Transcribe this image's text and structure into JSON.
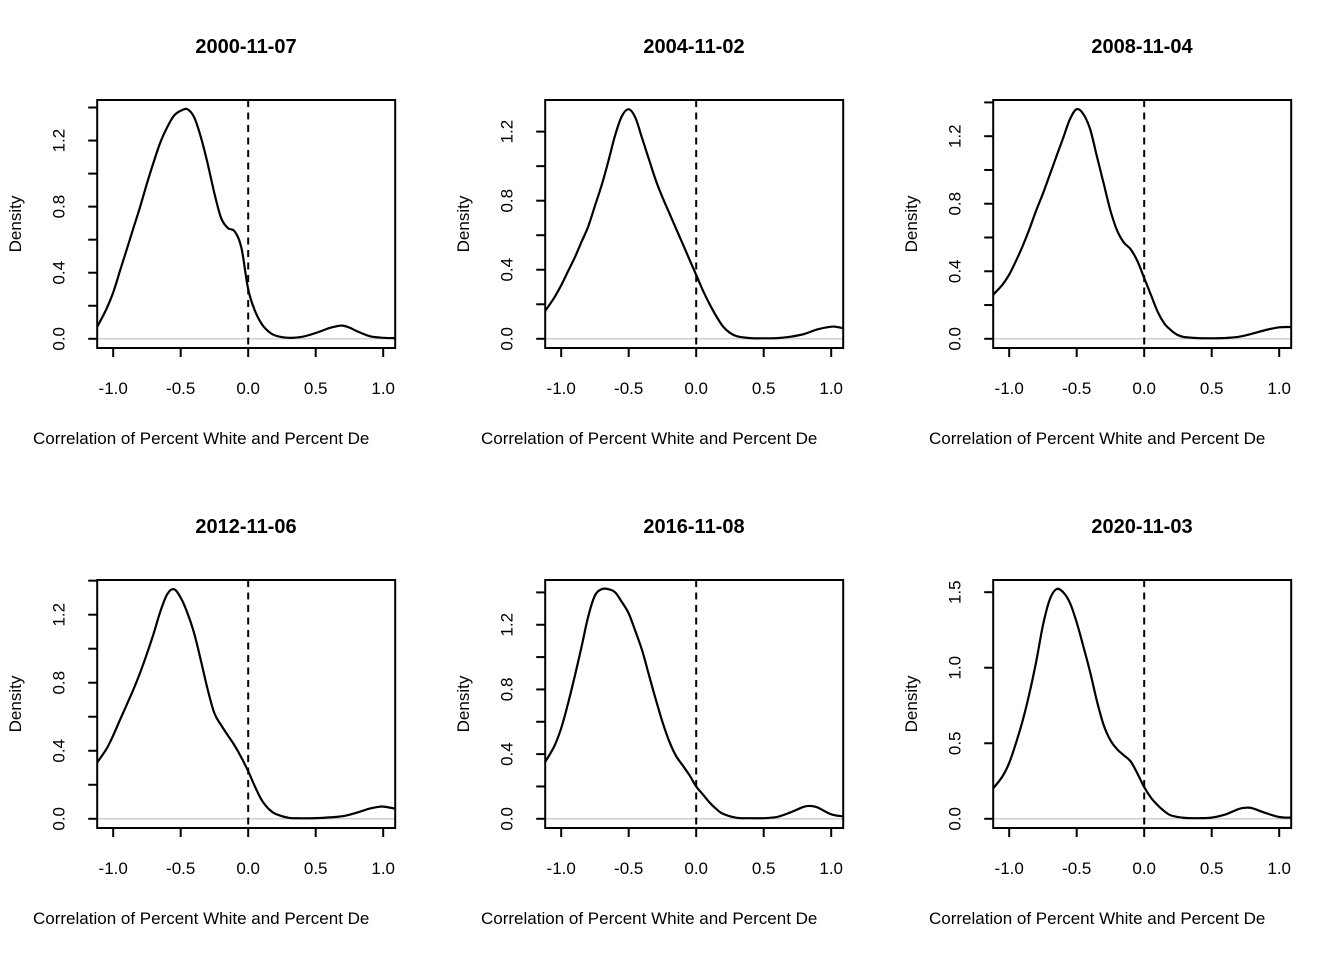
{
  "figure": {
    "background": "#ffffff",
    "curve_color": "#000000",
    "axis_color": "#000000",
    "zero_line_color": "#cfcfcf",
    "layout": {
      "rows": 2,
      "cols": 3
    }
  },
  "chart_data": [
    {
      "type": "line",
      "subtype": "density",
      "title": "2000-11-07",
      "xlabel": "Correlation of Percent White and Percent De",
      "ylabel": "Density",
      "xlim": [
        -1.12,
        1.09
      ],
      "x_tick_values": [
        -1.0,
        -0.5,
        0.0,
        0.5,
        1.0
      ],
      "x_tick_labels": [
        "-1.0",
        "-0.5",
        "0.0",
        "0.5",
        "1.0"
      ],
      "y_tick_values": [
        0,
        0.2,
        0.4,
        0.6,
        0.8,
        1.0,
        1.2,
        1.4
      ],
      "y_tick_labels": [
        "0.0",
        "",
        "0.4",
        "",
        "0.8",
        "",
        "1.2",
        ""
      ],
      "ref_line_x": 0,
      "grid": false,
      "points": [
        [
          -1.12,
          0.07
        ],
        [
          -1.05,
          0.18
        ],
        [
          -1.0,
          0.28
        ],
        [
          -0.95,
          0.41
        ],
        [
          -0.9,
          0.54
        ],
        [
          -0.85,
          0.67
        ],
        [
          -0.8,
          0.8
        ],
        [
          -0.75,
          0.94
        ],
        [
          -0.7,
          1.07
        ],
        [
          -0.65,
          1.19
        ],
        [
          -0.6,
          1.28
        ],
        [
          -0.55,
          1.35
        ],
        [
          -0.5,
          1.38
        ],
        [
          -0.45,
          1.39
        ],
        [
          -0.4,
          1.34
        ],
        [
          -0.35,
          1.22
        ],
        [
          -0.3,
          1.06
        ],
        [
          -0.25,
          0.88
        ],
        [
          -0.2,
          0.73
        ],
        [
          -0.15,
          0.67
        ],
        [
          -0.1,
          0.65
        ],
        [
          -0.05,
          0.55
        ],
        [
          0.0,
          0.3
        ],
        [
          0.05,
          0.17
        ],
        [
          0.1,
          0.09
        ],
        [
          0.15,
          0.045
        ],
        [
          0.2,
          0.02
        ],
        [
          0.3,
          0.006
        ],
        [
          0.4,
          0.012
        ],
        [
          0.5,
          0.035
        ],
        [
          0.6,
          0.065
        ],
        [
          0.65,
          0.075
        ],
        [
          0.7,
          0.08
        ],
        [
          0.75,
          0.068
        ],
        [
          0.8,
          0.048
        ],
        [
          0.9,
          0.016
        ],
        [
          1.0,
          0.006
        ],
        [
          1.09,
          0.004
        ]
      ]
    },
    {
      "type": "line",
      "subtype": "density",
      "title": "2004-11-02",
      "xlabel": "Correlation of Percent White and Percent De",
      "ylabel": "Density",
      "xlim": [
        -1.12,
        1.09
      ],
      "x_tick_values": [
        -1.0,
        -0.5,
        0.0,
        0.5,
        1.0
      ],
      "x_tick_labels": [
        "-1.0",
        "-0.5",
        "0.0",
        "0.5",
        "1.0"
      ],
      "y_tick_values": [
        0,
        0.2,
        0.4,
        0.6,
        0.8,
        1.0,
        1.2
      ],
      "y_tick_labels": [
        "0.0",
        "",
        "0.4",
        "",
        "0.8",
        "",
        "1.2"
      ],
      "ref_line_x": 0,
      "grid": false,
      "points": [
        [
          -1.12,
          0.16
        ],
        [
          -1.05,
          0.24
        ],
        [
          -1.0,
          0.31
        ],
        [
          -0.95,
          0.39
        ],
        [
          -0.9,
          0.47
        ],
        [
          -0.85,
          0.56
        ],
        [
          -0.8,
          0.65
        ],
        [
          -0.75,
          0.77
        ],
        [
          -0.7,
          0.89
        ],
        [
          -0.65,
          1.03
        ],
        [
          -0.6,
          1.18
        ],
        [
          -0.55,
          1.29
        ],
        [
          -0.5,
          1.33
        ],
        [
          -0.45,
          1.28
        ],
        [
          -0.4,
          1.16
        ],
        [
          -0.35,
          1.04
        ],
        [
          -0.3,
          0.92
        ],
        [
          -0.25,
          0.82
        ],
        [
          -0.2,
          0.73
        ],
        [
          -0.15,
          0.64
        ],
        [
          -0.1,
          0.55
        ],
        [
          -0.05,
          0.46
        ],
        [
          0.0,
          0.37
        ],
        [
          0.05,
          0.28
        ],
        [
          0.1,
          0.2
        ],
        [
          0.15,
          0.13
        ],
        [
          0.2,
          0.07
        ],
        [
          0.25,
          0.035
        ],
        [
          0.3,
          0.015
        ],
        [
          0.4,
          0.004
        ],
        [
          0.5,
          0.003
        ],
        [
          0.6,
          0.004
        ],
        [
          0.7,
          0.012
        ],
        [
          0.8,
          0.028
        ],
        [
          0.9,
          0.055
        ],
        [
          1.0,
          0.07
        ],
        [
          1.05,
          0.068
        ],
        [
          1.09,
          0.06
        ]
      ]
    },
    {
      "type": "line",
      "subtype": "density",
      "title": "2008-11-04",
      "xlabel": "Correlation of Percent White and Percent De",
      "ylabel": "Density",
      "xlim": [
        -1.12,
        1.09
      ],
      "x_tick_values": [
        -1.0,
        -0.5,
        0.0,
        0.5,
        1.0
      ],
      "x_tick_labels": [
        "-1.0",
        "-0.5",
        "0.0",
        "0.5",
        "1.0"
      ],
      "y_tick_values": [
        0,
        0.2,
        0.4,
        0.6,
        0.8,
        1.0,
        1.2,
        1.4
      ],
      "y_tick_labels": [
        "0.0",
        "",
        "0.4",
        "",
        "0.8",
        "",
        "1.2",
        ""
      ],
      "ref_line_x": 0,
      "grid": false,
      "points": [
        [
          -1.12,
          0.26
        ],
        [
          -1.05,
          0.32
        ],
        [
          -1.0,
          0.38
        ],
        [
          -0.95,
          0.46
        ],
        [
          -0.9,
          0.55
        ],
        [
          -0.85,
          0.65
        ],
        [
          -0.8,
          0.76
        ],
        [
          -0.75,
          0.86
        ],
        [
          -0.7,
          0.97
        ],
        [
          -0.65,
          1.08
        ],
        [
          -0.6,
          1.19
        ],
        [
          -0.55,
          1.3
        ],
        [
          -0.5,
          1.36
        ],
        [
          -0.45,
          1.33
        ],
        [
          -0.4,
          1.24
        ],
        [
          -0.35,
          1.08
        ],
        [
          -0.3,
          0.92
        ],
        [
          -0.25,
          0.76
        ],
        [
          -0.2,
          0.64
        ],
        [
          -0.15,
          0.57
        ],
        [
          -0.1,
          0.53
        ],
        [
          -0.05,
          0.46
        ],
        [
          0.0,
          0.36
        ],
        [
          0.05,
          0.26
        ],
        [
          0.1,
          0.16
        ],
        [
          0.15,
          0.09
        ],
        [
          0.2,
          0.05
        ],
        [
          0.25,
          0.022
        ],
        [
          0.3,
          0.01
        ],
        [
          0.4,
          0.004
        ],
        [
          0.5,
          0.003
        ],
        [
          0.6,
          0.005
        ],
        [
          0.7,
          0.012
        ],
        [
          0.8,
          0.03
        ],
        [
          0.9,
          0.052
        ],
        [
          1.0,
          0.068
        ],
        [
          1.09,
          0.07
        ]
      ]
    },
    {
      "type": "line",
      "subtype": "density",
      "title": "2012-11-06",
      "xlabel": "Correlation of Percent White and Percent De",
      "ylabel": "Density",
      "xlim": [
        -1.12,
        1.09
      ],
      "x_tick_values": [
        -1.0,
        -0.5,
        0.0,
        0.5,
        1.0
      ],
      "x_tick_labels": [
        "-1.0",
        "-0.5",
        "0.0",
        "0.5",
        "1.0"
      ],
      "y_tick_values": [
        0,
        0.2,
        0.4,
        0.6,
        0.8,
        1.0,
        1.2,
        1.4
      ],
      "y_tick_labels": [
        "0.0",
        "",
        "0.4",
        "",
        "0.8",
        "",
        "1.2",
        ""
      ],
      "ref_line_x": 0,
      "grid": false,
      "points": [
        [
          -1.12,
          0.33
        ],
        [
          -1.05,
          0.41
        ],
        [
          -1.0,
          0.49
        ],
        [
          -0.95,
          0.58
        ],
        [
          -0.9,
          0.67
        ],
        [
          -0.85,
          0.76
        ],
        [
          -0.8,
          0.86
        ],
        [
          -0.75,
          0.97
        ],
        [
          -0.7,
          1.09
        ],
        [
          -0.65,
          1.22
        ],
        [
          -0.6,
          1.32
        ],
        [
          -0.55,
          1.35
        ],
        [
          -0.5,
          1.3
        ],
        [
          -0.45,
          1.21
        ],
        [
          -0.4,
          1.09
        ],
        [
          -0.35,
          0.93
        ],
        [
          -0.3,
          0.76
        ],
        [
          -0.25,
          0.62
        ],
        [
          -0.2,
          0.55
        ],
        [
          -0.15,
          0.49
        ],
        [
          -0.1,
          0.43
        ],
        [
          -0.05,
          0.36
        ],
        [
          0.0,
          0.28
        ],
        [
          0.05,
          0.19
        ],
        [
          0.1,
          0.11
        ],
        [
          0.15,
          0.06
        ],
        [
          0.2,
          0.03
        ],
        [
          0.3,
          0.006
        ],
        [
          0.4,
          0.003
        ],
        [
          0.5,
          0.004
        ],
        [
          0.6,
          0.008
        ],
        [
          0.7,
          0.015
        ],
        [
          0.8,
          0.035
        ],
        [
          0.9,
          0.06
        ],
        [
          0.95,
          0.068
        ],
        [
          1.0,
          0.072
        ],
        [
          1.09,
          0.06
        ]
      ]
    },
    {
      "type": "line",
      "subtype": "density",
      "title": "2016-11-08",
      "xlabel": "Correlation of Percent White and Percent De",
      "ylabel": "Density",
      "xlim": [
        -1.12,
        1.09
      ],
      "x_tick_values": [
        -1.0,
        -0.5,
        0.0,
        0.5,
        1.0
      ],
      "x_tick_labels": [
        "-1.0",
        "-0.5",
        "0.0",
        "0.5",
        "1.0"
      ],
      "y_tick_values": [
        0,
        0.2,
        0.4,
        0.6,
        0.8,
        1.0,
        1.2,
        1.4
      ],
      "y_tick_labels": [
        "0.0",
        "",
        "0.4",
        "",
        "0.8",
        "",
        "1.2",
        ""
      ],
      "ref_line_x": 0,
      "grid": false,
      "points": [
        [
          -1.12,
          0.35
        ],
        [
          -1.05,
          0.45
        ],
        [
          -1.0,
          0.56
        ],
        [
          -0.95,
          0.71
        ],
        [
          -0.9,
          0.88
        ],
        [
          -0.85,
          1.06
        ],
        [
          -0.8,
          1.25
        ],
        [
          -0.75,
          1.38
        ],
        [
          -0.7,
          1.42
        ],
        [
          -0.65,
          1.42
        ],
        [
          -0.6,
          1.4
        ],
        [
          -0.55,
          1.34
        ],
        [
          -0.5,
          1.27
        ],
        [
          -0.45,
          1.16
        ],
        [
          -0.4,
          1.04
        ],
        [
          -0.35,
          0.89
        ],
        [
          -0.3,
          0.74
        ],
        [
          -0.25,
          0.6
        ],
        [
          -0.2,
          0.48
        ],
        [
          -0.15,
          0.39
        ],
        [
          -0.1,
          0.33
        ],
        [
          -0.05,
          0.27
        ],
        [
          0.0,
          0.2
        ],
        [
          0.05,
          0.15
        ],
        [
          0.1,
          0.1
        ],
        [
          0.15,
          0.06
        ],
        [
          0.2,
          0.03
        ],
        [
          0.3,
          0.006
        ],
        [
          0.4,
          0.004
        ],
        [
          0.5,
          0.004
        ],
        [
          0.6,
          0.012
        ],
        [
          0.7,
          0.04
        ],
        [
          0.8,
          0.075
        ],
        [
          0.85,
          0.079
        ],
        [
          0.9,
          0.07
        ],
        [
          1.0,
          0.028
        ],
        [
          1.09,
          0.015
        ]
      ]
    },
    {
      "type": "line",
      "subtype": "density",
      "title": "2020-11-03",
      "xlabel": "Correlation of Percent White and Percent De",
      "ylabel": "Density",
      "xlim": [
        -1.12,
        1.09
      ],
      "x_tick_values": [
        -1.0,
        -0.5,
        0.0,
        0.5,
        1.0
      ],
      "x_tick_labels": [
        "-1.0",
        "-0.5",
        "0.0",
        "0.5",
        "1.0"
      ],
      "y_tick_values": [
        0,
        0.5,
        1.0,
        1.5
      ],
      "y_tick_labels": [
        "0.0",
        "0.5",
        "1.0",
        "1.5"
      ],
      "ref_line_x": 0,
      "grid": false,
      "points": [
        [
          -1.12,
          0.2
        ],
        [
          -1.05,
          0.28
        ],
        [
          -1.0,
          0.37
        ],
        [
          -0.95,
          0.5
        ],
        [
          -0.9,
          0.65
        ],
        [
          -0.85,
          0.83
        ],
        [
          -0.8,
          1.04
        ],
        [
          -0.75,
          1.28
        ],
        [
          -0.7,
          1.45
        ],
        [
          -0.65,
          1.52
        ],
        [
          -0.6,
          1.5
        ],
        [
          -0.55,
          1.43
        ],
        [
          -0.5,
          1.3
        ],
        [
          -0.45,
          1.14
        ],
        [
          -0.4,
          0.97
        ],
        [
          -0.35,
          0.78
        ],
        [
          -0.3,
          0.62
        ],
        [
          -0.25,
          0.52
        ],
        [
          -0.2,
          0.46
        ],
        [
          -0.15,
          0.42
        ],
        [
          -0.1,
          0.38
        ],
        [
          -0.05,
          0.3
        ],
        [
          0.0,
          0.21
        ],
        [
          0.05,
          0.14
        ],
        [
          0.1,
          0.09
        ],
        [
          0.15,
          0.05
        ],
        [
          0.2,
          0.022
        ],
        [
          0.3,
          0.006
        ],
        [
          0.4,
          0.004
        ],
        [
          0.5,
          0.008
        ],
        [
          0.6,
          0.028
        ],
        [
          0.7,
          0.065
        ],
        [
          0.75,
          0.073
        ],
        [
          0.8,
          0.07
        ],
        [
          0.9,
          0.038
        ],
        [
          1.0,
          0.012
        ],
        [
          1.09,
          0.007
        ]
      ]
    }
  ]
}
